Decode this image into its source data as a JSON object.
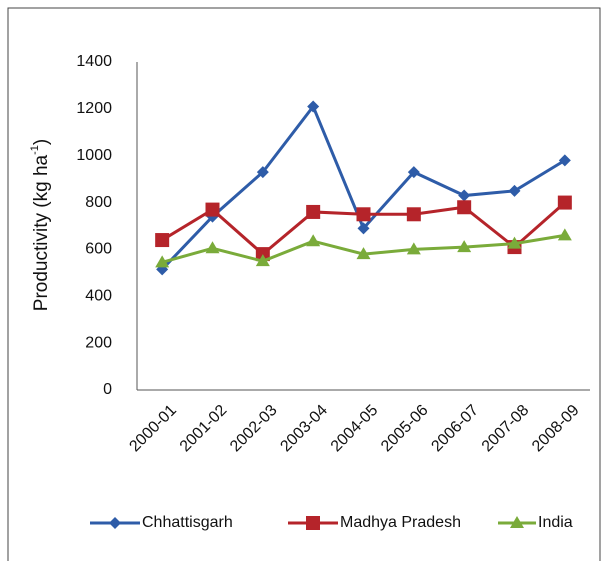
{
  "chart_data": {
    "type": "line",
    "y_label": [
      "Productivity (kg ha",
      "-1",
      ")"
    ],
    "categories": [
      "2000-01",
      "2001-02",
      "2002-03",
      "2003-04",
      "2004-05",
      "2005-06",
      "2006-07",
      "2007-08",
      "2008-09"
    ],
    "series": [
      {
        "name": "Chhattisgarh",
        "color": "#2e5ca8",
        "marker": "diamond",
        "values": [
          515,
          740,
          930,
          1210,
          690,
          930,
          830,
          850,
          980
        ]
      },
      {
        "name": "Madhya Pradesh",
        "color": "#b5242a",
        "marker": "square",
        "values": [
          640,
          770,
          580,
          760,
          750,
          750,
          780,
          610,
          800
        ]
      },
      {
        "name": "India",
        "color": "#7aab3a",
        "marker": "triangle",
        "values": [
          545,
          605,
          550,
          635,
          580,
          600,
          610,
          625,
          660
        ]
      }
    ],
    "ylim": [
      0,
      1400
    ],
    "yticks": [
      0,
      200,
      400,
      600,
      800,
      1000,
      1200,
      1400
    ],
    "grid": false,
    "legend": "bottom"
  }
}
